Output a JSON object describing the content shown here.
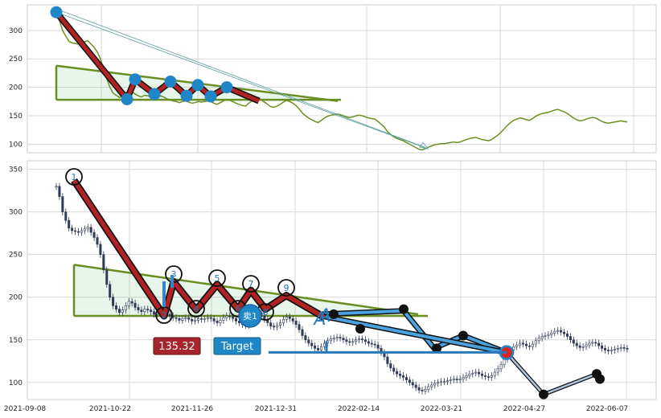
{
  "chart_data": [
    {
      "type": "line",
      "panel": "overview",
      "ylim": [
        85,
        345
      ],
      "yticks": [
        100,
        150,
        200,
        250,
        300
      ],
      "grid": true,
      "series": [
        {
          "color": "#6b8e23",
          "values": [
            330,
            318,
            300,
            290,
            281,
            278,
            277,
            276,
            278,
            280,
            282,
            276,
            270,
            262,
            250,
            232,
            215,
            200,
            190,
            186,
            182,
            185,
            190,
            195,
            193,
            188,
            185,
            183,
            186,
            185,
            183,
            180,
            182,
            185,
            183,
            180,
            178,
            176,
            175,
            173,
            175,
            176,
            174,
            172,
            173,
            175,
            174,
            175,
            176,
            175,
            172,
            170,
            173,
            176,
            178,
            177,
            175,
            172,
            170,
            168,
            167,
            172,
            176,
            178,
            182,
            178,
            174,
            170,
            166,
            165,
            167,
            170,
            174,
            177,
            175,
            172,
            168,
            162,
            155,
            150,
            146,
            143,
            140,
            138,
            142,
            146,
            149,
            151,
            152,
            153,
            152,
            150,
            148,
            147,
            148,
            150,
            151,
            150,
            148,
            146,
            145,
            144,
            140,
            135,
            130,
            122,
            117,
            113,
            110,
            108,
            106,
            103,
            100,
            97,
            94,
            91,
            90,
            92,
            95,
            97,
            99,
            100,
            101,
            101,
            102,
            103,
            104,
            103,
            104,
            106,
            108,
            110,
            111,
            112,
            110,
            108,
            107,
            106,
            108,
            112,
            116,
            121,
            127,
            133,
            138,
            142,
            144,
            146,
            145,
            143,
            142,
            145,
            149,
            152,
            154,
            155,
            156,
            158,
            160,
            161,
            159,
            157,
            154,
            150,
            146,
            143,
            141,
            142,
            144,
            146,
            147,
            146,
            143,
            140,
            138,
            137,
            138,
            139,
            140,
            141,
            140,
            139
          ]
        }
      ],
      "wave_points": [
        [
          0,
          332
        ],
        [
          4,
          179
        ],
        [
          5,
          214
        ],
        [
          6,
          188
        ],
        [
          7,
          210
        ],
        [
          8,
          185
        ],
        [
          9,
          204
        ],
        [
          10,
          184
        ],
        [
          11,
          200
        ],
        [
          13,
          176
        ]
      ],
      "triangle": [
        [
          0,
          238
        ],
        [
          0,
          178
        ],
        [
          16,
          178
        ],
        [
          15,
          180
        ]
      ],
      "projection_arrow": [
        [
          0,
          332
        ],
        [
          21,
          92
        ]
      ]
    },
    {
      "type": "candlestick",
      "panel": "main",
      "ylim": [
        80,
        360
      ],
      "yticks": [
        100,
        150,
        200,
        250,
        300,
        350
      ],
      "xticks": [
        "2021-09-08",
        "2021-10-22",
        "2021-11-26",
        "2021-12-31",
        "2022-02-14",
        "2022-03-21",
        "2022-04-27",
        "2022-06-07"
      ],
      "grid": true,
      "wave_labels": [
        "1",
        "2",
        "3",
        "4",
        "5",
        "6",
        "7",
        "8",
        "9"
      ],
      "wave_points": [
        [
          0,
          337
        ],
        [
          1,
          178
        ],
        [
          2,
          218
        ],
        [
          3,
          185
        ],
        [
          4,
          215
        ],
        [
          5,
          186
        ],
        [
          6,
          208
        ],
        [
          7,
          186
        ],
        [
          8,
          202
        ],
        [
          9,
          176
        ]
      ],
      "sell_label": "卖1",
      "price_label": "135.32",
      "target_label": "Target",
      "target_value": 135.32,
      "triangle": [
        [
          0,
          238
        ],
        [
          0,
          178
        ],
        [
          16,
          178
        ],
        [
          15,
          180
        ]
      ],
      "future_path": [
        [
          0,
          180
        ],
        [
          1,
          164
        ],
        [
          2,
          186
        ],
        [
          3,
          141
        ],
        [
          4,
          156
        ],
        [
          5,
          136
        ]
      ],
      "projection_end": [
        [
          0,
          86
        ],
        [
          1,
          110
        ],
        [
          2,
          103
        ]
      ],
      "markers": [
        "A",
        "A"
      ]
    }
  ]
}
